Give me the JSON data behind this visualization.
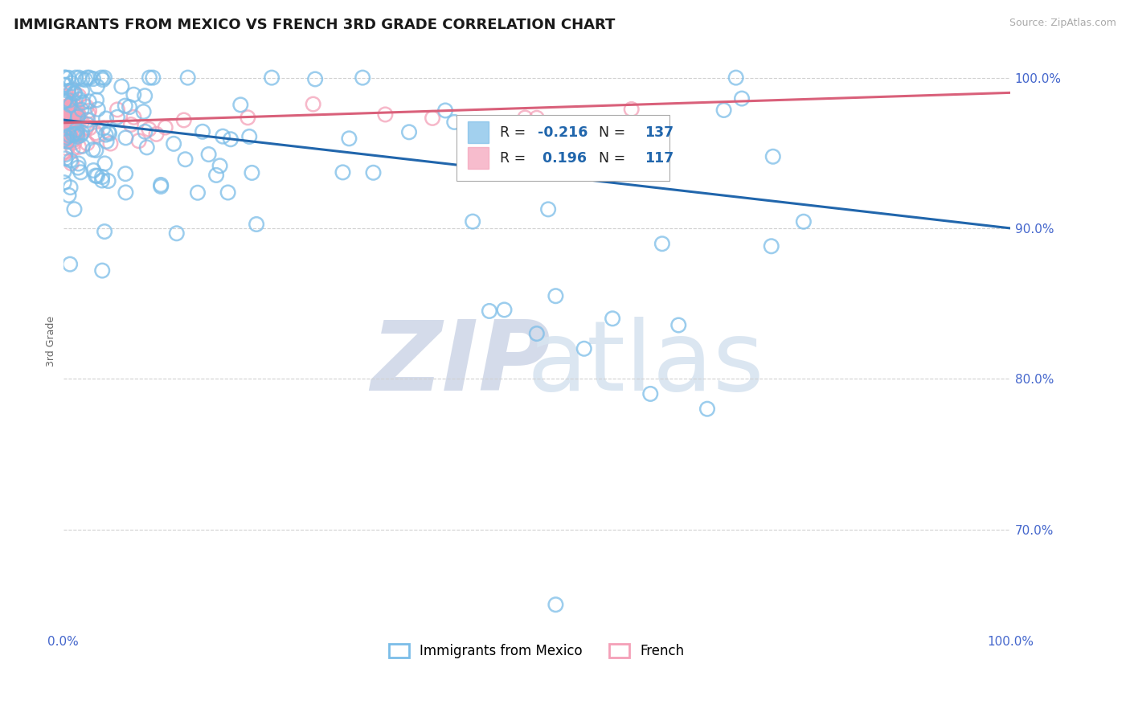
{
  "title": "IMMIGRANTS FROM MEXICO VS FRENCH 3RD GRADE CORRELATION CHART",
  "source_text": "Source: ZipAtlas.com",
  "ylabel": "3rd Grade",
  "legend_entries": [
    "Immigrants from Mexico",
    "French"
  ],
  "blue_R": -0.216,
  "blue_N": 137,
  "pink_R": 0.196,
  "pink_N": 117,
  "blue_color": "#7bbde8",
  "pink_color": "#f4a0b8",
  "blue_line_color": "#2166ac",
  "pink_line_color": "#d9607a",
  "xlim": [
    0.0,
    1.0
  ],
  "ylim": [
    0.635,
    1.015
  ],
  "y_ticks": [
    0.7,
    0.8,
    0.9,
    1.0
  ],
  "y_tick_labels": [
    "70.0%",
    "80.0%",
    "90.0%",
    "100.0%"
  ],
  "grid_color": "#d0d0d0",
  "background_color": "#ffffff",
  "title_fontsize": 13,
  "axis_label_fontsize": 9,
  "tick_fontsize": 11,
  "watermark_color": "#d8e4f0",
  "watermark_zip_color": "#d0d8e8"
}
